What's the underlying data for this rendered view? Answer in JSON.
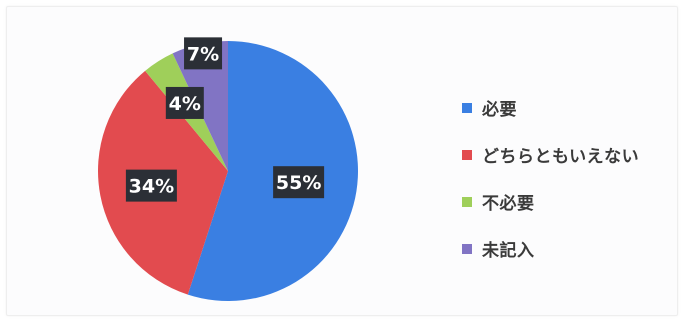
{
  "chart_data": {
    "type": "pie",
    "title": "",
    "start_angle_deg": 0,
    "direction": "clockwise",
    "slices": [
      {
        "label": "必要",
        "value": 55,
        "value_label": "55%",
        "color": "#3a7fe2"
      },
      {
        "label": "どちらともいえない",
        "value": 34,
        "value_label": "34%",
        "color": "#e24b4f"
      },
      {
        "label": "不必要",
        "value": 4,
        "value_label": "4%",
        "color": "#9fcf5a"
      },
      {
        "label": "未記入",
        "value": 7,
        "value_label": "7%",
        "color": "#8174c4"
      }
    ],
    "legend_position": "right",
    "data_label_style": {
      "background": "#2b2f36",
      "text_color": "#ffffff"
    }
  }
}
